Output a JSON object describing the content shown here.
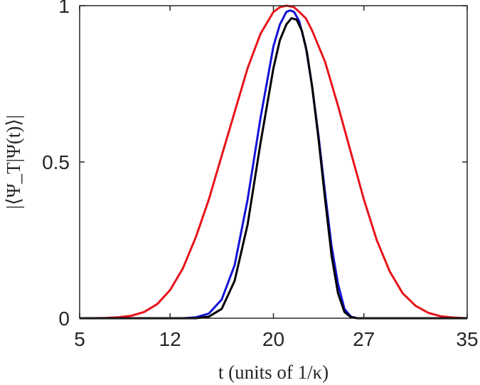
{
  "chart_data": {
    "type": "line",
    "xlabel": "t (units of 1/κ)",
    "ylabel": "|⟨Ψ_T|Ψ(t)⟩|",
    "xlim": [
      5,
      35
    ],
    "ylim": [
      0,
      1
    ],
    "x_ticks": [
      5,
      12,
      20,
      27,
      35
    ],
    "x_tick_labels": [
      "5",
      "12",
      "20",
      "27",
      "35"
    ],
    "y_ticks": [
      0,
      0.5,
      1
    ],
    "y_tick_labels": [
      "0",
      "0.5",
      "1"
    ],
    "grid": false,
    "legend": "none",
    "colors": {
      "red": "#e8141b",
      "blue": "#1313d6",
      "black": "#000000"
    },
    "series": [
      {
        "color": "#e8141b",
        "x": [
          5,
          6,
          7,
          8,
          9,
          10,
          11,
          12,
          13,
          14,
          15,
          16,
          17,
          18,
          19,
          20,
          20.5,
          21,
          21.3,
          21.6,
          22,
          22.5,
          23,
          24,
          25,
          26,
          27,
          28,
          29,
          30,
          31,
          32,
          33,
          34,
          35
        ],
        "y": [
          0.0,
          0.0,
          0.001,
          0.003,
          0.008,
          0.02,
          0.045,
          0.09,
          0.16,
          0.26,
          0.38,
          0.52,
          0.66,
          0.8,
          0.91,
          0.98,
          0.995,
          1.0,
          0.998,
          0.995,
          0.98,
          0.96,
          0.92,
          0.82,
          0.68,
          0.53,
          0.38,
          0.25,
          0.15,
          0.08,
          0.04,
          0.017,
          0.006,
          0.002,
          0.0
        ]
      },
      {
        "color": "#1313d6",
        "x": [
          5,
          10,
          13,
          14,
          15,
          16,
          17,
          18,
          19,
          20,
          20.5,
          21,
          21.3,
          21.6,
          22,
          22.5,
          23,
          23.5,
          24,
          24.5,
          25,
          25.5,
          26,
          26.5,
          27,
          30,
          35
        ],
        "y": [
          0.0,
          0.0,
          0.0,
          0.003,
          0.015,
          0.06,
          0.17,
          0.38,
          0.64,
          0.87,
          0.94,
          0.98,
          0.985,
          0.98,
          0.95,
          0.87,
          0.74,
          0.58,
          0.4,
          0.23,
          0.11,
          0.03,
          0.005,
          0.0,
          0.0,
          0.0,
          0.0
        ]
      },
      {
        "color": "#000000",
        "x": [
          5,
          10,
          14,
          15,
          16,
          17,
          18,
          19,
          20,
          20.5,
          21,
          21.4,
          21.8,
          22.2,
          22.6,
          23,
          23.5,
          24,
          24.5,
          25,
          25.5,
          26,
          26.5,
          27,
          30,
          35
        ],
        "y": [
          0.0,
          0.0,
          0.0,
          0.005,
          0.03,
          0.12,
          0.3,
          0.56,
          0.8,
          0.89,
          0.94,
          0.96,
          0.955,
          0.92,
          0.85,
          0.74,
          0.57,
          0.38,
          0.2,
          0.08,
          0.02,
          0.003,
          0.0,
          0.0,
          0.0,
          0.0
        ]
      }
    ]
  }
}
